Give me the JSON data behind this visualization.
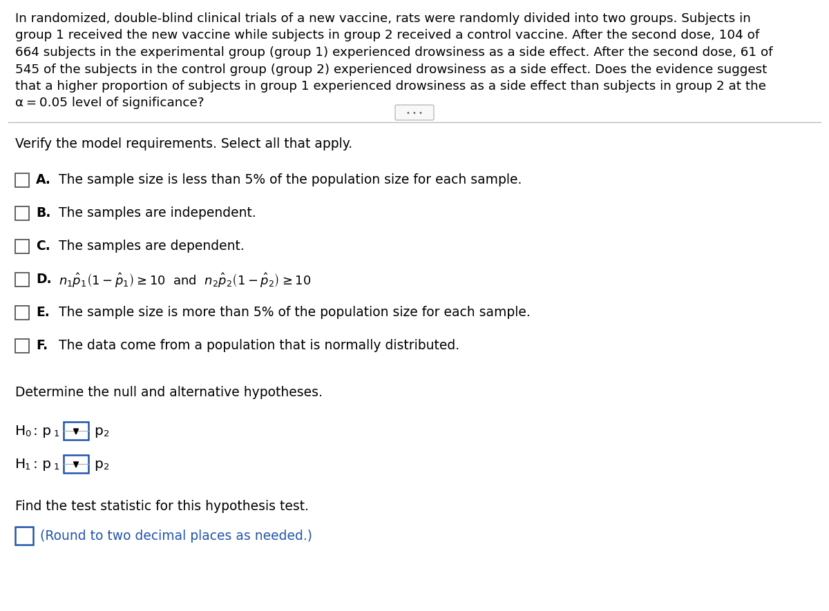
{
  "bg_color": "#ffffff",
  "text_color": "#000000",
  "blue_color": "#2255aa",
  "gray_color": "#555555",
  "light_gray": "#aaaaaa",
  "para_lines": [
    "In randomized, double-blind clinical trials of a new vaccine, rats were randomly divided into two groups. Subjects in",
    "group 1 received the new vaccine while subjects in group 2 received a control vaccine. After the second dose, 104 of",
    "664 subjects in the experimental group (group 1) experienced drowsiness as a side effect. After the second dose, 61 of",
    "545 of the subjects in the control group (group 2) experienced drowsiness as a side effect. Does the evidence suggest",
    "that a higher proportion of subjects in group 1 experienced drowsiness as a side effect than subjects in group 2 at the",
    "α = 0.05 level of significance?"
  ],
  "verify_label": "Verify the model requirements. Select all that apply.",
  "options": [
    {
      "key": "A.",
      "text": "The sample size is less than 5% of the population size for each sample.",
      "math": false
    },
    {
      "key": "B.",
      "text": "The samples are independent.",
      "math": false
    },
    {
      "key": "C.",
      "text": "The samples are dependent.",
      "math": false
    },
    {
      "key": "D.",
      "text": "",
      "math": true
    },
    {
      "key": "E.",
      "text": "The sample size is more than 5% of the population size for each sample.",
      "math": false
    },
    {
      "key": "F.",
      "text": "The data come from a population that is normally distributed.",
      "math": false
    }
  ],
  "hyp_label": "Determine the null and alternative hypotheses.",
  "H0_prefix": "H",
  "H0_sub": "0",
  "H0_suffix": ": p",
  "H0_subsuffix": "1",
  "H1_prefix": "H",
  "H1_sub": "1",
  "H1_suffix": ": p",
  "H1_subsuffix": "1",
  "p2_label": "p",
  "p2_sub": "2",
  "stat_label": "Find the test statistic for this hypothesis test.",
  "round_note": "(Round to two decimal places as needed.)"
}
